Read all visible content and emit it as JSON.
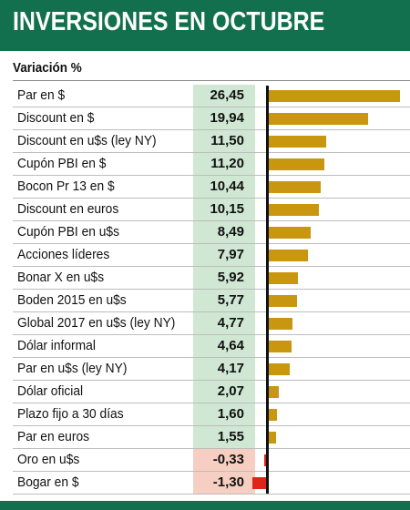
{
  "header": {
    "title": "INVERSIONES EN OCTUBRE"
  },
  "subtitle": "Variación %",
  "colors": {
    "header_bg": "#12704f",
    "positive_bar": "#c9960f",
    "negative_bar": "#e02418",
    "positive_cell": "#cfe7d3",
    "negative_cell": "#f6cfc2"
  },
  "chart_data": {
    "type": "bar",
    "orientation": "horizontal",
    "title": "INVERSIONES EN OCTUBRE",
    "subtitle": "Variación %",
    "categories": [
      "Par en $",
      "Discount en $",
      "Discount en u$s (ley NY)",
      "Cupón PBI en $",
      "Bocon Pr 13 en $",
      "Discount en euros",
      "Cupón PBI en u$s",
      "Acciones líderes",
      "Bonar X en u$s",
      "Boden 2015 en u$s",
      "Global 2017 en u$s (ley NY)",
      "Dólar informal",
      "Par en u$s (ley NY)",
      "Dólar oficial",
      "Plazo fijo a 30 días",
      "Par en euros",
      "Oro en u$s",
      "Bogar en $"
    ],
    "values": [
      26.45,
      19.94,
      11.5,
      11.2,
      10.44,
      10.15,
      8.49,
      7.97,
      5.92,
      5.77,
      4.77,
      4.64,
      4.17,
      2.07,
      1.6,
      1.55,
      -0.33,
      -1.3
    ],
    "value_labels": [
      "26,45",
      "19,94",
      "11,50",
      "11,20",
      "10,44",
      "10,15",
      "8,49",
      "7,97",
      "5,92",
      "5,77",
      "4,77",
      "4,64",
      "4,17",
      "2,07",
      "1,60",
      "1,55",
      "-0,33",
      "-1,30"
    ]
  }
}
